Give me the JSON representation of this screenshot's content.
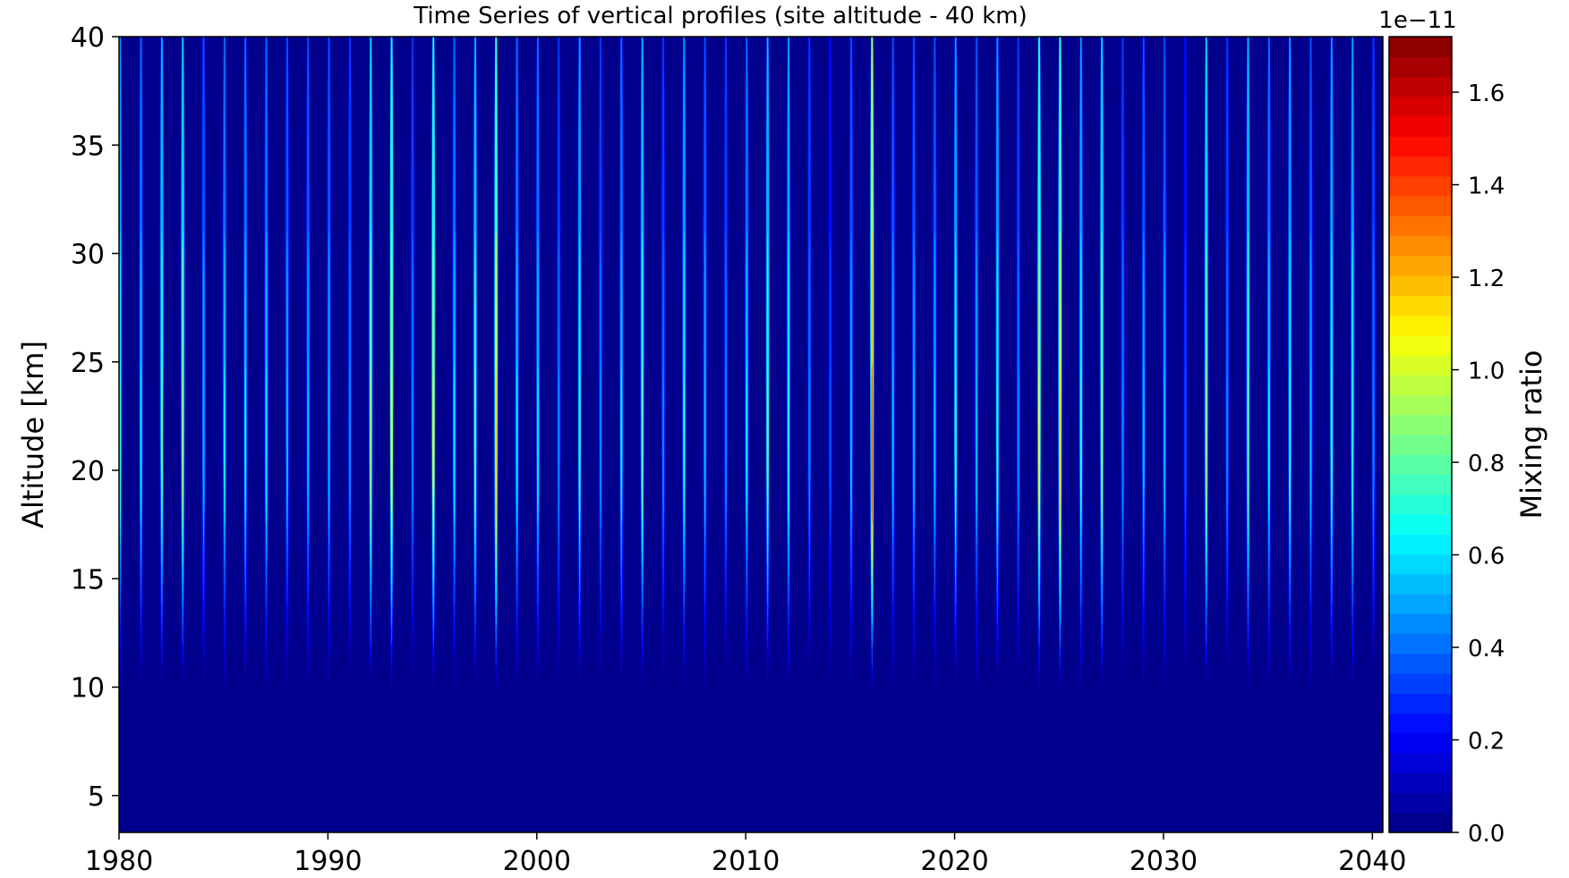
{
  "chart_data": {
    "type": "heatmap",
    "title": "Time Series of vertical profiles (site altitude - 40 km)",
    "xlabel": "",
    "ylabel": "Altitude [km]",
    "xlim": [
      1980,
      2040.5
    ],
    "ylim": [
      3.3,
      40
    ],
    "xticks": [
      1980,
      1990,
      2000,
      2010,
      2020,
      2030,
      2040
    ],
    "yticks": [
      5,
      10,
      15,
      20,
      25,
      30,
      35,
      40
    ],
    "colorbar": {
      "label": "Mixing ratio",
      "offset_text": "1e−11",
      "colormap": "jet",
      "range": [
        0.0,
        1.72
      ],
      "ticks": [
        "0.0",
        "0.2",
        "0.4",
        "0.6",
        "0.8",
        "1.0",
        "1.2",
        "1.4",
        "1.6"
      ],
      "tick_values": [
        0.0,
        0.2,
        0.4,
        0.6,
        0.8,
        1.0,
        1.2,
        1.4,
        1.6
      ],
      "levels": 40
    },
    "grid": false,
    "series": [
      {
        "values_note_unit": "peak mixing ratio (1e-11) of yearly vertical maxima",
        "years": [
          1980,
          1981,
          1982,
          1983,
          1984,
          1985,
          1986,
          1987,
          1988,
          1989,
          1990,
          1991,
          1992,
          1993,
          1994,
          1995,
          1996,
          1997,
          1998,
          1999,
          2000,
          2001,
          2002,
          2003,
          2004,
          2005,
          2006,
          2007,
          2008,
          2009,
          2010,
          2011,
          2012,
          2013,
          2014,
          2015,
          2016,
          2017,
          2018,
          2019,
          2020,
          2021,
          2022,
          2023,
          2024,
          2025,
          2026,
          2027,
          2028,
          2029,
          2030,
          2031,
          2032,
          2033,
          2034,
          2035,
          2036,
          2037,
          2038,
          2039,
          2040
        ],
        "peak": [
          0.8,
          0.7,
          0.9,
          1.0,
          0.6,
          0.7,
          0.7,
          0.7,
          0.6,
          0.6,
          0.6,
          0.5,
          1.0,
          1.2,
          0.5,
          1.2,
          0.7,
          0.9,
          1.3,
          0.7,
          0.7,
          0.5,
          0.8,
          0.5,
          0.7,
          0.9,
          0.5,
          0.8,
          0.6,
          0.5,
          0.7,
          0.9,
          0.8,
          0.5,
          0.4,
          0.6,
          1.55,
          0.6,
          0.6,
          0.6,
          0.8,
          0.6,
          0.8,
          0.5,
          1.2,
          1.3,
          0.8,
          1.0,
          0.5,
          0.6,
          0.6,
          0.4,
          1.0,
          0.5,
          0.9,
          0.7,
          0.8,
          0.6,
          0.8,
          0.8,
          0.5
        ],
        "peak_altitude_km": 19,
        "lower_extent_km": 9,
        "upper_extent_km": 40
      }
    ]
  }
}
